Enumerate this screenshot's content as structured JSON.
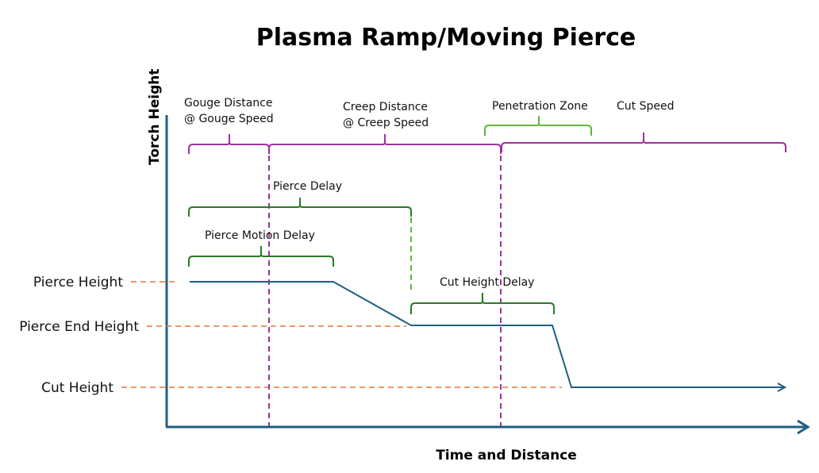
{
  "title": "Plasma Ramp/Moving Pierce",
  "axes": {
    "y_label": "Torch Height",
    "x_label": "Time and Distance"
  },
  "levels": {
    "pierce_height": "Pierce Height",
    "pierce_end_height": "Pierce End Height",
    "cut_height": "Cut Height"
  },
  "spans": {
    "gouge_line1": "Gouge Distance",
    "gouge_line2": "@ Gouge Speed",
    "creep_line1": "Creep Distance",
    "creep_line2": "@ Creep Speed",
    "penetration_zone": "Penetration Zone",
    "cut_speed": "Cut Speed",
    "pierce_delay": "Pierce Delay",
    "pierce_motion_delay": "Pierce Motion Delay",
    "cut_height_delay": "Cut Height Delay"
  },
  "colors": {
    "axis": "#1f5f82",
    "distance": "#a3309c",
    "delay": "#2a7a2a",
    "penetration": "#5fb640",
    "level_guide": "#e8763a"
  }
}
